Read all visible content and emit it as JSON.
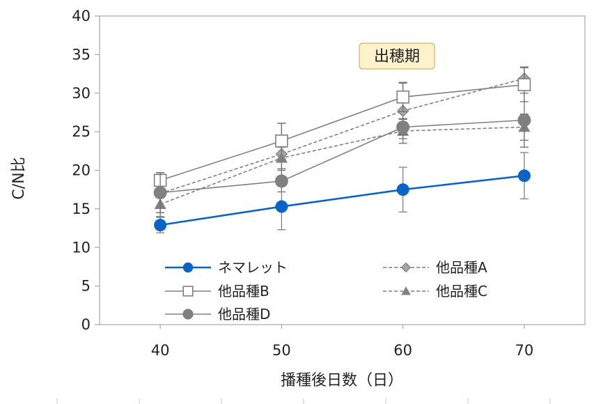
{
  "chart_data": {
    "type": "line",
    "title": "",
    "xlabel": "播種後日数（日）",
    "ylabel": "C/N比",
    "x": [
      40,
      50,
      60,
      70
    ],
    "x_ticks": [
      "40",
      "50",
      "60",
      "70"
    ],
    "xlim": [
      35,
      75
    ],
    "ylim": [
      0,
      40
    ],
    "y_ticks": [
      "0",
      "5",
      "10",
      "15",
      "20",
      "25",
      "30",
      "35",
      "40"
    ],
    "grid": false,
    "annotation": "出穂期",
    "legend_position": "bottom-inside",
    "series": [
      {
        "name": "ネマレット",
        "values": [
          12.9,
          15.3,
          17.5,
          19.3
        ],
        "err": [
          1.0,
          3.0,
          2.9,
          3.0
        ],
        "color": "#0a64c8",
        "marker": "circle-filled",
        "line": "solid"
      },
      {
        "name": "他品種A",
        "values": [
          17.0,
          22.1,
          27.7,
          31.9
        ],
        "err": [
          2.5,
          4.0,
          3.6,
          1.5
        ],
        "color": "#7f7f7f",
        "marker": "diamond-filled",
        "line": "dashed"
      },
      {
        "name": "他品種B",
        "values": [
          18.7,
          23.8,
          29.5,
          31.1
        ],
        "err": [
          1.0,
          2.3,
          1.9,
          2.2
        ],
        "color": "#808080",
        "marker": "square-open",
        "line": "solid"
      },
      {
        "name": "他品種C",
        "values": [
          15.6,
          21.6,
          25.1,
          25.6
        ],
        "err": [
          1.6,
          1.4,
          1.6,
          1.7
        ],
        "color": "#7f7f7f",
        "marker": "triangle-filled",
        "line": "dashed"
      },
      {
        "name": "他品種D",
        "values": [
          17.1,
          18.6,
          25.6,
          26.5
        ],
        "err": [
          2.6,
          1.4,
          1.0,
          3.5
        ],
        "color": "#808080",
        "marker": "circle-gray",
        "line": "solid"
      }
    ]
  }
}
